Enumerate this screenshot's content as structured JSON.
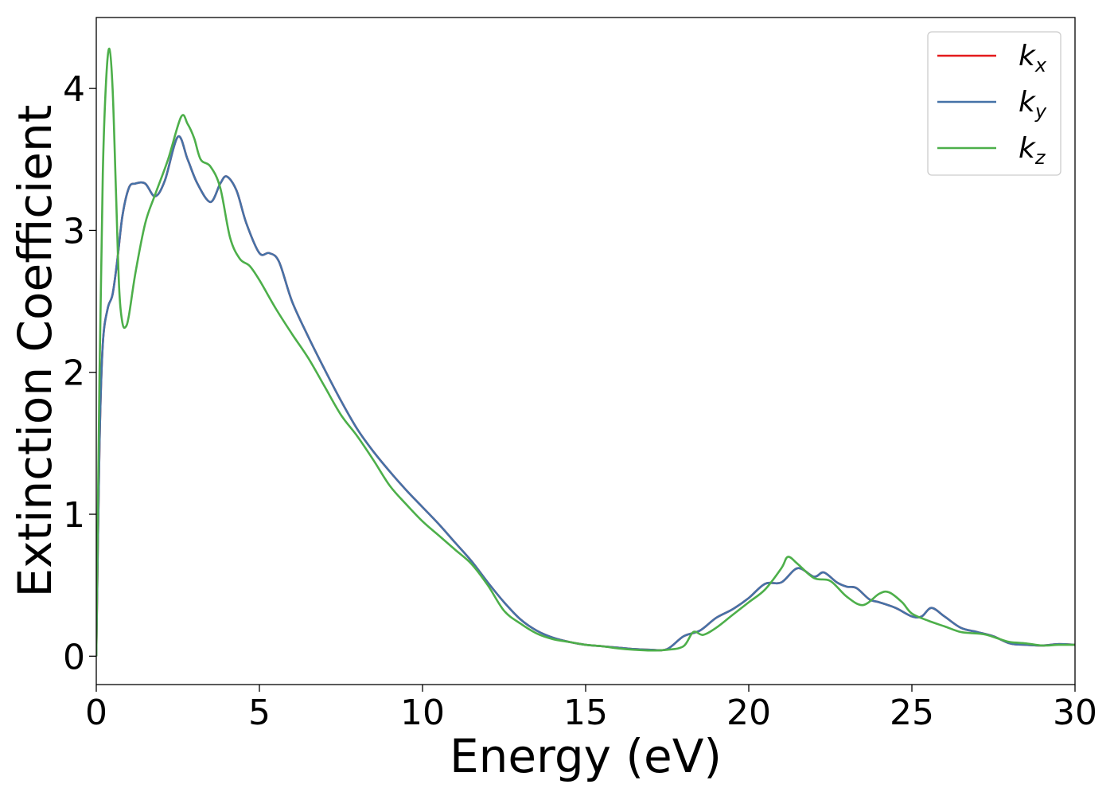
{
  "chart_data": {
    "type": "line",
    "title": "",
    "xlabel": "Energy (eV)",
    "ylabel": "Extinction Coefficient",
    "xlim": [
      0,
      30
    ],
    "ylim": [
      -0.2,
      4.5
    ],
    "xticks": [
      0,
      5,
      10,
      15,
      20,
      25,
      30
    ],
    "yticks": [
      0,
      1,
      2,
      3,
      4
    ],
    "grid": false,
    "legend_position": "top-right",
    "series": [
      {
        "name": "k_x",
        "legend_base": "k",
        "legend_sub": "x",
        "color": "#e41a1c",
        "x": [
          0,
          0.1,
          0.2,
          0.35,
          0.5,
          0.65,
          0.8,
          1.0,
          1.2,
          1.5,
          1.8,
          2.1,
          2.5,
          2.8,
          3.1,
          3.5,
          3.8,
          4.0,
          4.3,
          4.6,
          5.0,
          5.3,
          5.6,
          6.0,
          6.5,
          7.0,
          7.5,
          8.0,
          8.5,
          9.0,
          9.5,
          10.0,
          10.5,
          11.0,
          11.5,
          12.0,
          12.5,
          13.0,
          13.5,
          14.0,
          14.5,
          15.0,
          15.5,
          16.0,
          16.5,
          17.0,
          17.5,
          18.0,
          18.5,
          19.0,
          19.5,
          20.0,
          20.5,
          21.0,
          21.5,
          22.0,
          22.3,
          22.7,
          23.0,
          23.3,
          23.7,
          24.0,
          24.5,
          25.0,
          25.3,
          25.6,
          26.0,
          26.5,
          27.0,
          27.5,
          28.0,
          28.5,
          29.0,
          29.5,
          30.0
        ],
        "values": [
          0,
          1.5,
          2.2,
          2.45,
          2.55,
          2.8,
          3.1,
          3.3,
          3.33,
          3.33,
          3.24,
          3.35,
          3.66,
          3.5,
          3.33,
          3.2,
          3.33,
          3.38,
          3.28,
          3.05,
          2.84,
          2.84,
          2.78,
          2.5,
          2.25,
          2.02,
          1.8,
          1.6,
          1.44,
          1.3,
          1.17,
          1.05,
          0.93,
          0.8,
          0.67,
          0.52,
          0.38,
          0.26,
          0.18,
          0.13,
          0.1,
          0.08,
          0.07,
          0.06,
          0.05,
          0.045,
          0.05,
          0.14,
          0.18,
          0.27,
          0.33,
          0.41,
          0.51,
          0.52,
          0.62,
          0.56,
          0.59,
          0.52,
          0.49,
          0.48,
          0.4,
          0.38,
          0.34,
          0.28,
          0.28,
          0.34,
          0.28,
          0.2,
          0.17,
          0.14,
          0.09,
          0.08,
          0.075,
          0.085,
          0.08
        ]
      },
      {
        "name": "k_y",
        "legend_base": "k",
        "legend_sub": "y",
        "color": "#4572a7",
        "x": [
          0,
          0.1,
          0.2,
          0.35,
          0.5,
          0.65,
          0.8,
          1.0,
          1.2,
          1.5,
          1.8,
          2.1,
          2.5,
          2.8,
          3.1,
          3.5,
          3.8,
          4.0,
          4.3,
          4.6,
          5.0,
          5.3,
          5.6,
          6.0,
          6.5,
          7.0,
          7.5,
          8.0,
          8.5,
          9.0,
          9.5,
          10.0,
          10.5,
          11.0,
          11.5,
          12.0,
          12.5,
          13.0,
          13.5,
          14.0,
          14.5,
          15.0,
          15.5,
          16.0,
          16.5,
          17.0,
          17.5,
          18.0,
          18.5,
          19.0,
          19.5,
          20.0,
          20.5,
          21.0,
          21.5,
          22.0,
          22.3,
          22.7,
          23.0,
          23.3,
          23.7,
          24.0,
          24.5,
          25.0,
          25.3,
          25.6,
          26.0,
          26.5,
          27.0,
          27.5,
          28.0,
          28.5,
          29.0,
          29.5,
          30.0
        ],
        "values": [
          0,
          1.5,
          2.2,
          2.45,
          2.55,
          2.8,
          3.1,
          3.3,
          3.33,
          3.33,
          3.24,
          3.35,
          3.66,
          3.5,
          3.33,
          3.2,
          3.33,
          3.38,
          3.28,
          3.05,
          2.84,
          2.84,
          2.78,
          2.5,
          2.25,
          2.02,
          1.8,
          1.6,
          1.44,
          1.3,
          1.17,
          1.05,
          0.93,
          0.8,
          0.67,
          0.52,
          0.38,
          0.26,
          0.18,
          0.13,
          0.1,
          0.08,
          0.07,
          0.06,
          0.05,
          0.045,
          0.05,
          0.14,
          0.18,
          0.27,
          0.33,
          0.41,
          0.51,
          0.52,
          0.62,
          0.56,
          0.59,
          0.52,
          0.49,
          0.48,
          0.4,
          0.38,
          0.34,
          0.28,
          0.28,
          0.34,
          0.28,
          0.2,
          0.17,
          0.14,
          0.09,
          0.08,
          0.075,
          0.085,
          0.08
        ]
      },
      {
        "name": "k_z",
        "legend_base": "k",
        "legend_sub": "z",
        "color": "#4daf4a",
        "x": [
          0,
          0.1,
          0.2,
          0.3,
          0.4,
          0.5,
          0.6,
          0.7,
          0.8,
          0.9,
          1.0,
          1.2,
          1.5,
          1.8,
          2.2,
          2.6,
          2.8,
          3.0,
          3.2,
          3.5,
          3.8,
          4.1,
          4.4,
          4.7,
          5.0,
          5.5,
          6.0,
          6.5,
          7.0,
          7.5,
          8.0,
          8.5,
          9.0,
          9.5,
          10.0,
          10.5,
          11.0,
          11.5,
          12.0,
          12.5,
          13.0,
          13.5,
          14.0,
          14.5,
          15.0,
          15.5,
          16.0,
          16.5,
          17.0,
          17.5,
          18.0,
          18.3,
          18.6,
          19.0,
          19.5,
          20.0,
          20.5,
          21.0,
          21.2,
          21.5,
          22.0,
          22.5,
          23.0,
          23.5,
          24.0,
          24.3,
          24.7,
          25.0,
          25.5,
          26.0,
          26.5,
          27.0,
          27.3,
          27.7,
          28.0,
          28.5,
          29.0,
          29.5,
          30.0
        ],
        "values": [
          0,
          2.0,
          3.4,
          4.05,
          4.28,
          4.0,
          3.3,
          2.6,
          2.35,
          2.32,
          2.4,
          2.7,
          3.05,
          3.25,
          3.5,
          3.8,
          3.75,
          3.65,
          3.5,
          3.45,
          3.3,
          2.95,
          2.8,
          2.75,
          2.65,
          2.45,
          2.27,
          2.1,
          1.9,
          1.7,
          1.55,
          1.38,
          1.2,
          1.07,
          0.95,
          0.85,
          0.75,
          0.65,
          0.5,
          0.32,
          0.23,
          0.16,
          0.12,
          0.1,
          0.08,
          0.07,
          0.055,
          0.045,
          0.04,
          0.045,
          0.07,
          0.17,
          0.15,
          0.2,
          0.29,
          0.38,
          0.47,
          0.62,
          0.7,
          0.65,
          0.55,
          0.53,
          0.42,
          0.36,
          0.44,
          0.45,
          0.38,
          0.3,
          0.25,
          0.21,
          0.17,
          0.16,
          0.15,
          0.12,
          0.1,
          0.09,
          0.075,
          0.08,
          0.08
        ]
      }
    ]
  }
}
